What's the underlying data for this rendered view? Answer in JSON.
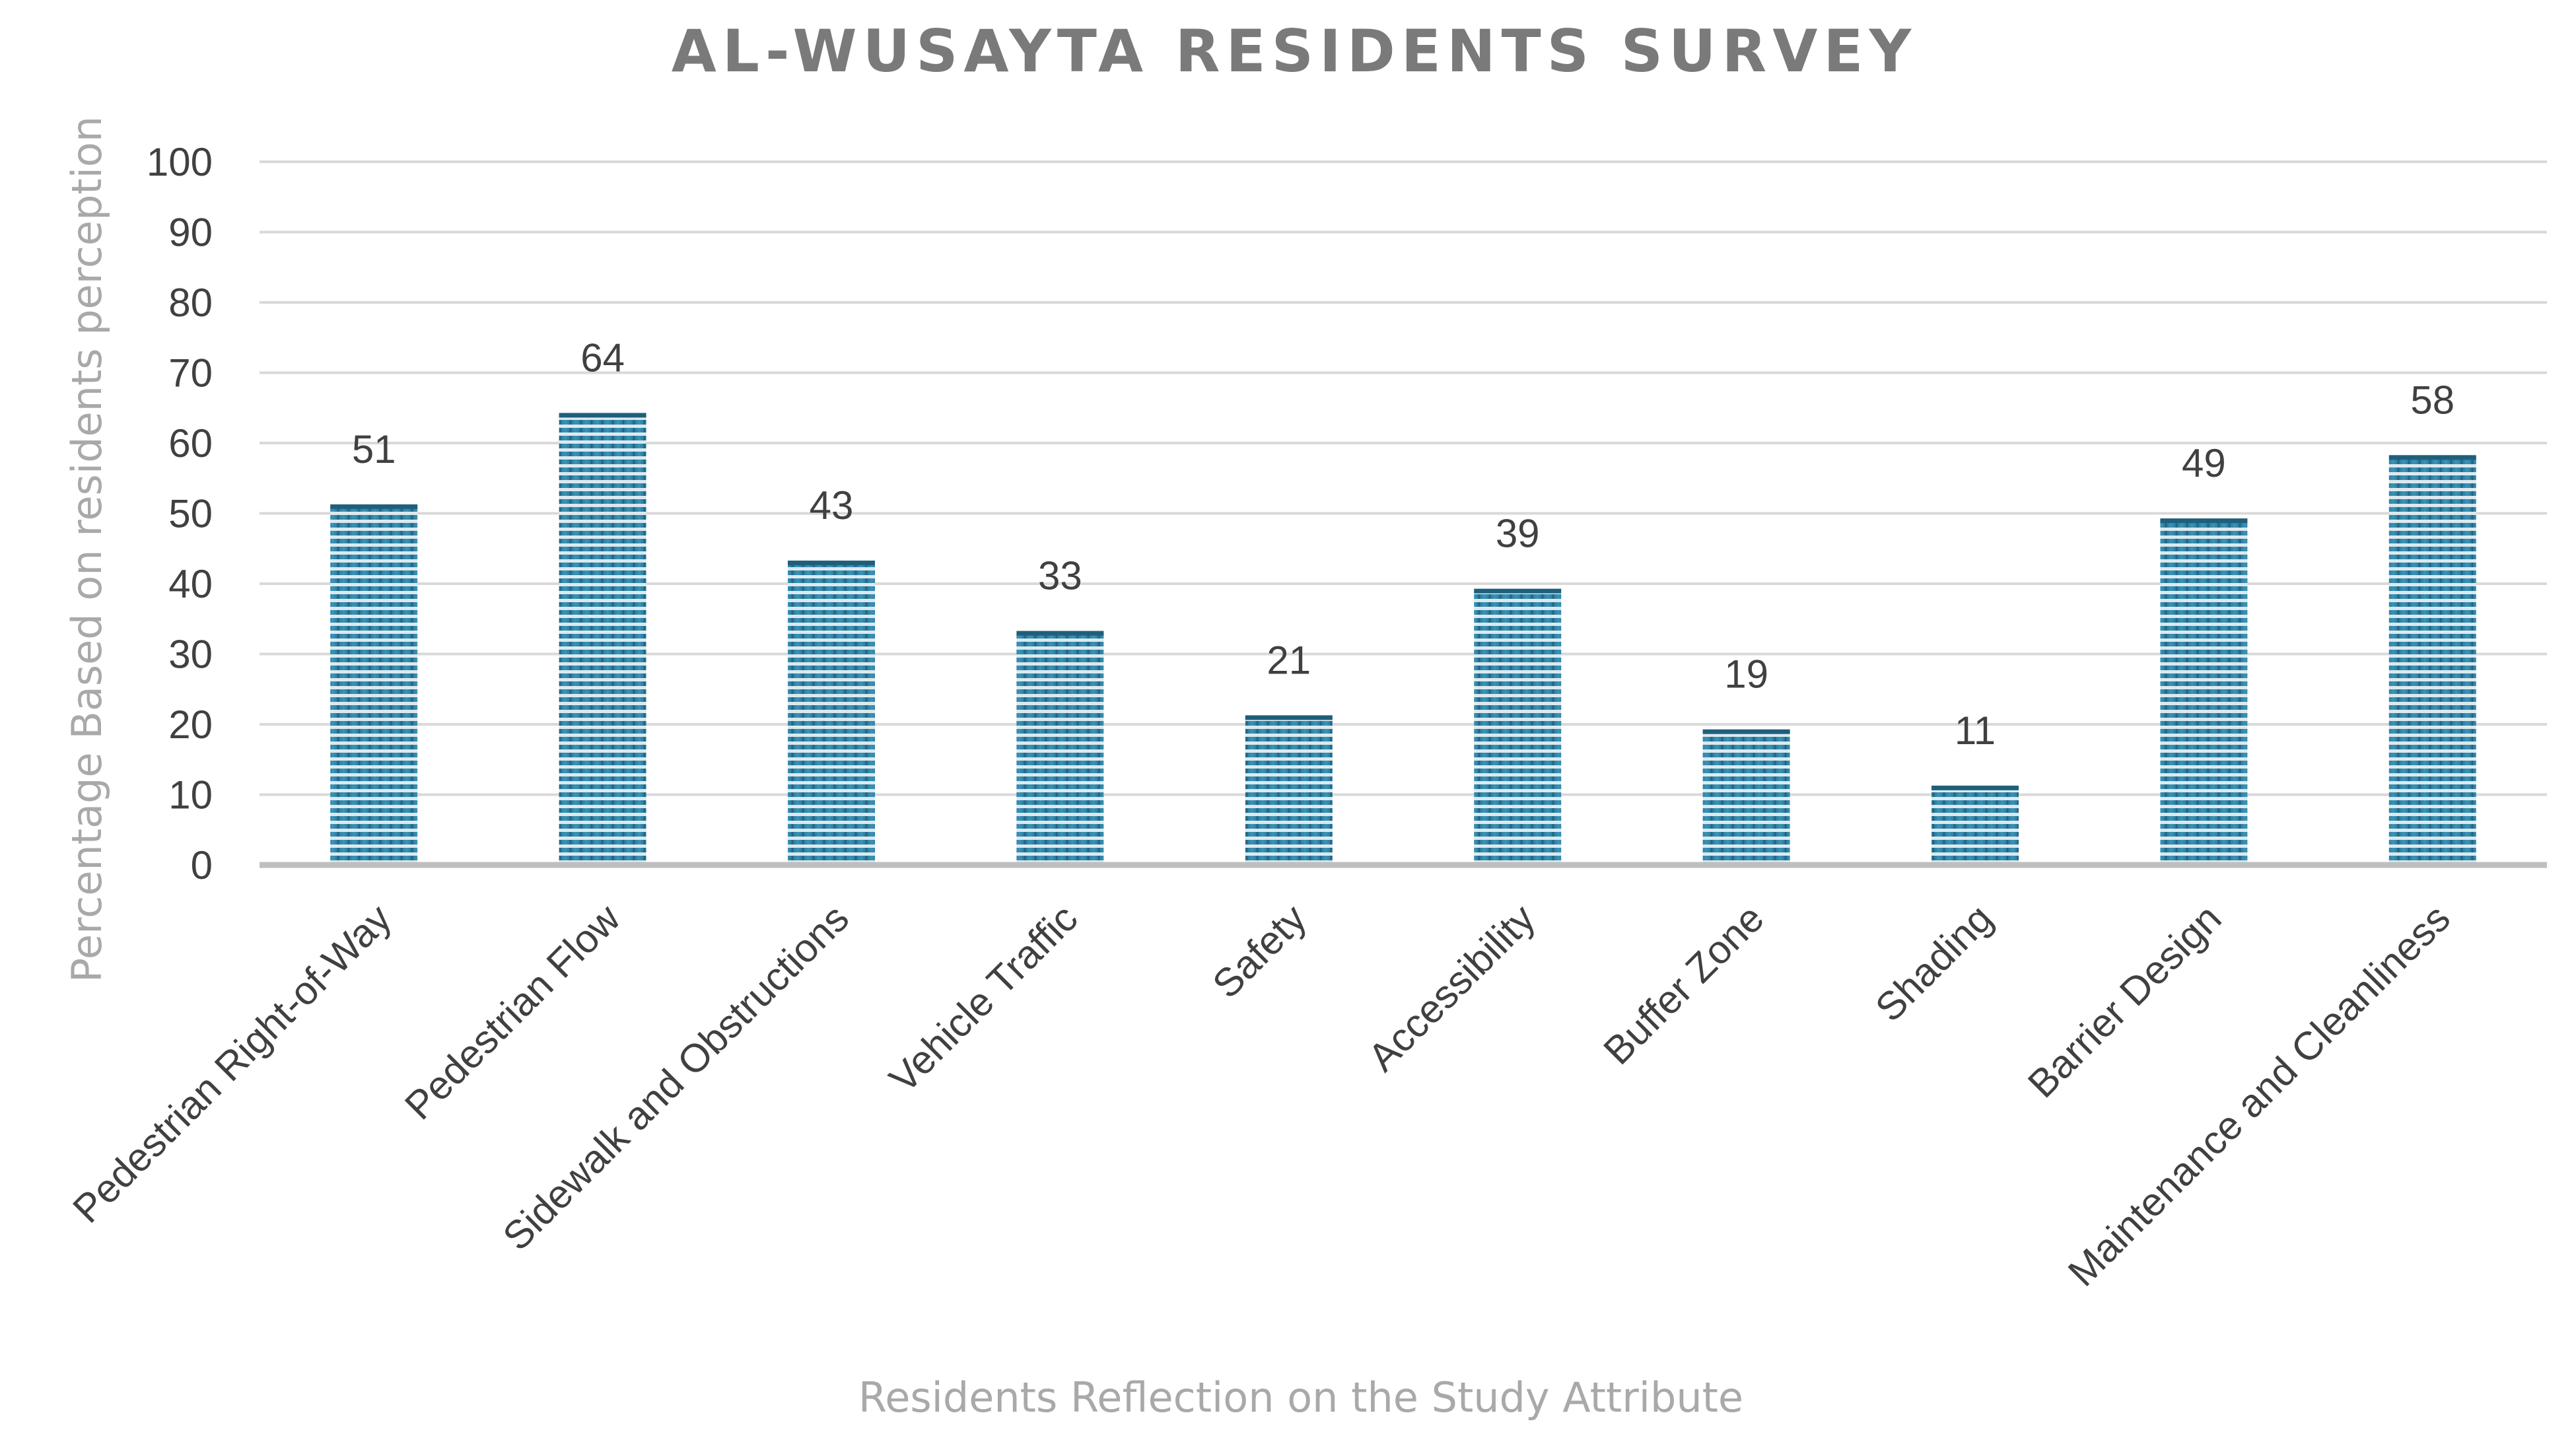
{
  "chart_data": {
    "type": "bar",
    "title": "AL-WUSAYTA RESIDENTS SURVEY",
    "xlabel": "Residents Reflection on the Study Attribute",
    "ylabel": "Percentage Based on residents perception",
    "categories": [
      "Pedestrian Right-of-Way",
      "Pedestrian Flow",
      "Sidewalk and Obstructions",
      "Vehicle Traffic",
      "Safety",
      "Accessibility",
      "Buffer Zone",
      "Shading",
      "Barrier Design",
      "Maintenance and Cleanliness"
    ],
    "values": [
      51,
      64,
      43,
      33,
      21,
      39,
      19,
      11,
      49,
      58
    ],
    "ylim": [
      0,
      100
    ],
    "yticks": [
      "0",
      "10",
      "20",
      "30",
      "40",
      "50",
      "60",
      "70",
      "80",
      "90",
      "100"
    ],
    "grid": true,
    "legend": "none",
    "bar_color": "#2e7fa0",
    "bar_pattern": "horizontal-stripes"
  }
}
